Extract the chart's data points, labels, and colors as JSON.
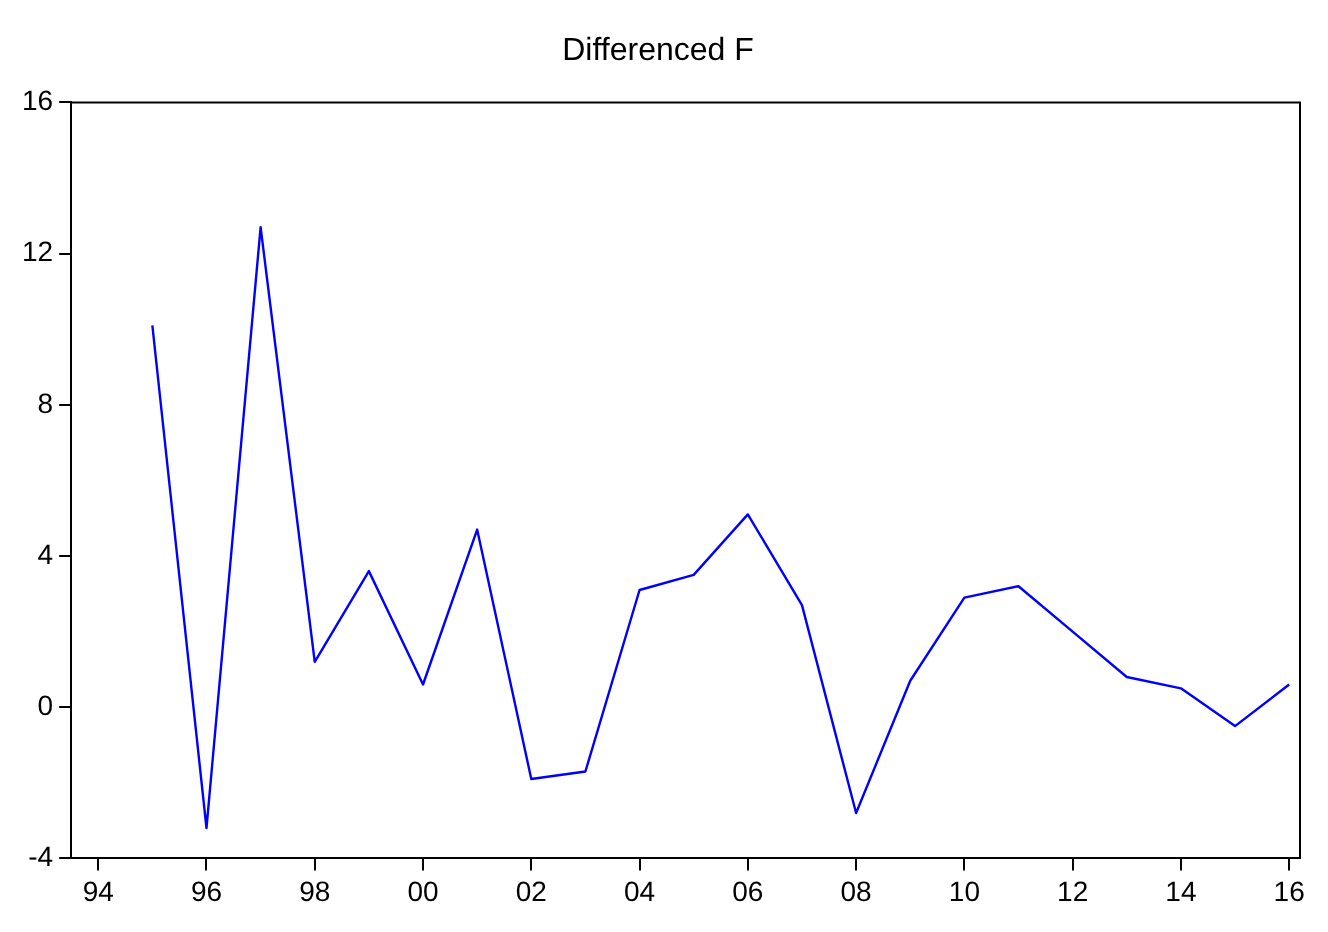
{
  "chart_data": {
    "type": "line",
    "title": "Differenced F",
    "x": [
      1995,
      1996,
      1997,
      1998,
      1999,
      2000,
      2001,
      2002,
      2003,
      2004,
      2005,
      2006,
      2007,
      2008,
      2009,
      2010,
      2011,
      2012,
      2013,
      2014,
      2015,
      2016
    ],
    "series": [
      {
        "color": "#0000ff",
        "values": [
          10.1,
          -3.2,
          12.7,
          1.2,
          3.6,
          0.6,
          4.7,
          -1.9,
          -1.7,
          3.1,
          3.5,
          5.1,
          2.7,
          -2.8,
          0.7,
          2.9,
          3.2,
          2.0,
          0.8,
          0.5,
          -0.5,
          0.6
        ]
      }
    ],
    "xlim": [
      1993.5,
      2016.2
    ],
    "xticks": [
      {
        "value": 1994,
        "label": "94"
      },
      {
        "value": 1996,
        "label": "96"
      },
      {
        "value": 1998,
        "label": "98"
      },
      {
        "value": 2000,
        "label": "00"
      },
      {
        "value": 2002,
        "label": "02"
      },
      {
        "value": 2004,
        "label": "04"
      },
      {
        "value": 2006,
        "label": "06"
      },
      {
        "value": 2008,
        "label": "08"
      },
      {
        "value": 2010,
        "label": "10"
      },
      {
        "value": 2012,
        "label": "12"
      },
      {
        "value": 2014,
        "label": "14"
      },
      {
        "value": 2016,
        "label": "16"
      }
    ],
    "ylim": [
      -4,
      16
    ],
    "yticks": [
      -4,
      0,
      4,
      8,
      12,
      16
    ],
    "grid": false,
    "legend": false,
    "marker": "none",
    "line_style": "solid"
  }
}
